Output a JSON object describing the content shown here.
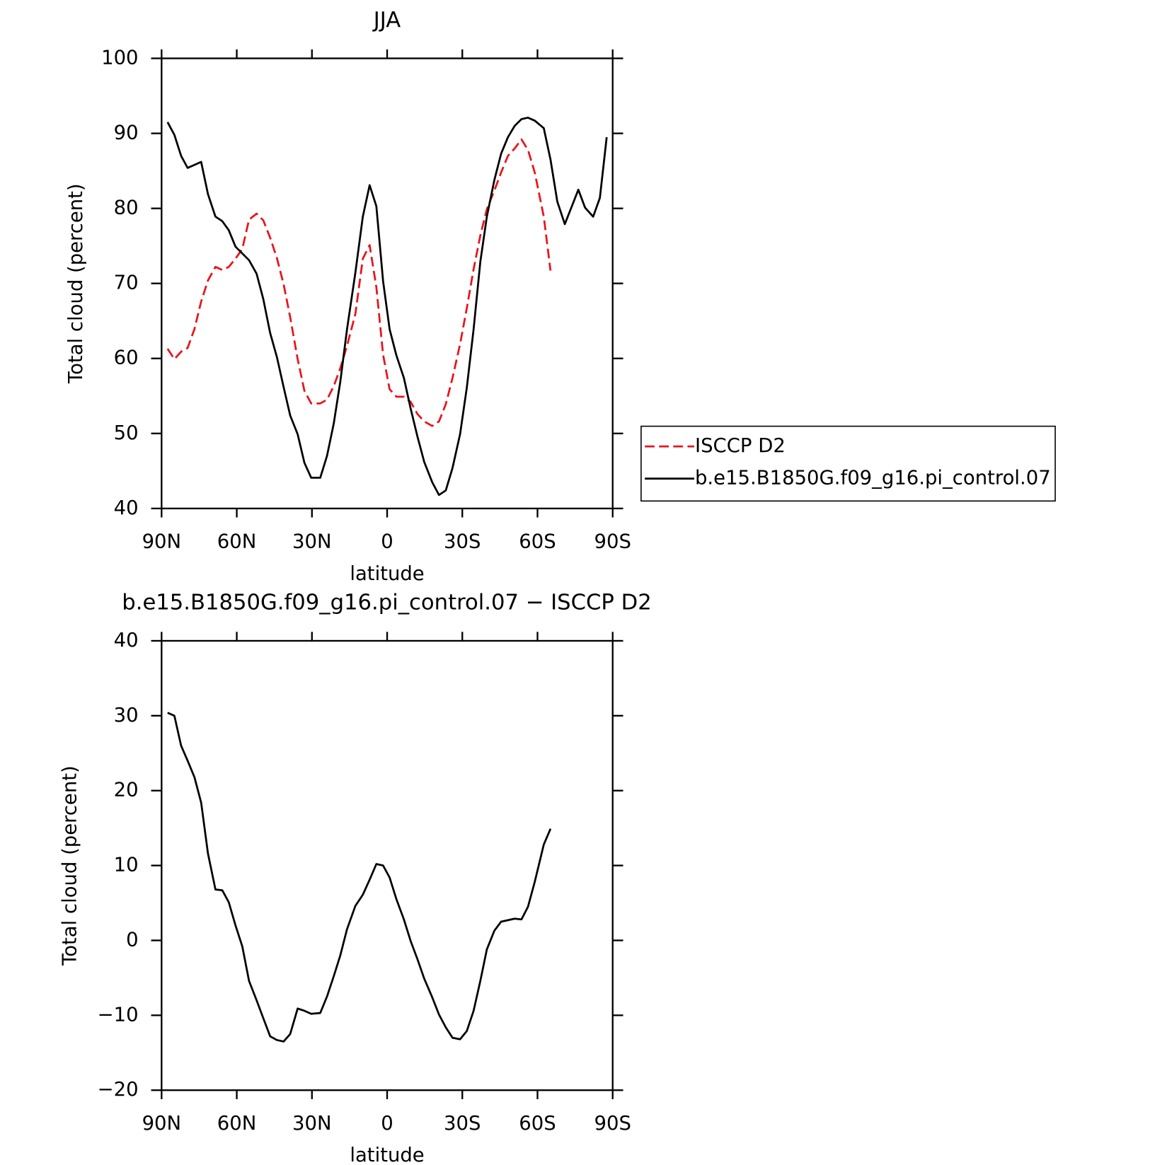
{
  "chart_data": [
    {
      "type": "line",
      "title": "JJA",
      "xlabel": "latitude",
      "ylabel": "Total cloud (percent)",
      "x": [
        87.6,
        84.9,
        82.2,
        79.6,
        76.9,
        74.2,
        71.5,
        68.5,
        65.8,
        63.2,
        60.5,
        57.8,
        55.1,
        52.1,
        49.4,
        46.7,
        44.0,
        41.3,
        38.7,
        35.7,
        33.0,
        30.3,
        26.7,
        24.0,
        21.3,
        18.7,
        16.0,
        12.7,
        9.7,
        7.0,
        4.3,
        1.6,
        -1.0,
        -3.7,
        -6.7,
        -9.4,
        -12.1,
        -14.8,
        -18.0,
        -20.7,
        -23.4,
        -26.1,
        -29.1,
        -31.8,
        -34.5,
        -37.2,
        -39.8,
        -42.8,
        -45.5,
        -48.2,
        -50.9,
        -53.6,
        -56.2,
        -58.9,
        -62.5,
        -65.2,
        -67.9,
        -70.9,
        -73.6,
        -76.3,
        -79.0,
        -82.2,
        -84.9,
        -87.6
      ],
      "series": [
        {
          "name": "ISCCP D2",
          "color": "#e8141c",
          "linestyle": "dashed",
          "values": [
            61.3,
            59.9,
            60.9,
            61.4,
            63.9,
            67.6,
            70.4,
            72.2,
            71.8,
            72.2,
            73.3,
            74.6,
            78.5,
            79.3,
            78.4,
            76.1,
            73.4,
            69.9,
            65.5,
            59.9,
            55.7,
            54.0,
            54.0,
            54.5,
            56.3,
            58.7,
            61.7,
            65.9,
            73.3,
            75.1,
            69.5,
            60.5,
            55.9,
            54.9,
            54.9,
            54.2,
            52.6,
            51.6,
            51.0,
            51.6,
            53.9,
            57.4,
            61.9,
            66.7,
            71.9,
            76.4,
            79.9,
            82.4,
            84.8,
            87.0,
            88.0,
            89.2,
            87.8,
            84.8,
            78.9,
            71.7,
            null,
            null,
            null,
            null,
            null,
            null,
            null,
            null
          ]
        },
        {
          "name": "b.e15.B1850G.f09_g16.pi_control.07",
          "color": "#000000",
          "linestyle": "solid",
          "values": [
            91.5,
            89.8,
            87.0,
            85.4,
            85.8,
            86.2,
            81.9,
            78.9,
            78.3,
            77.1,
            74.9,
            74.0,
            73.1,
            71.3,
            67.9,
            63.4,
            60.2,
            56.2,
            52.4,
            49.9,
            46.1,
            44.1,
            44.1,
            47.0,
            51.3,
            56.9,
            63.9,
            71.4,
            78.9,
            83.1,
            80.3,
            70.3,
            63.9,
            60.4,
            57.4,
            53.3,
            49.6,
            46.2,
            43.5,
            41.8,
            42.4,
            45.4,
            49.9,
            56.1,
            63.9,
            72.9,
            78.9,
            83.8,
            87.3,
            89.5,
            91.0,
            91.9,
            92.1,
            91.7,
            90.7,
            86.5,
            80.9,
            77.9,
            80.2,
            82.5,
            80.1,
            78.9,
            81.4,
            89.5
          ]
        }
      ],
      "xlim": [
        90,
        -90
      ],
      "xticks": [
        {
          "value": 90,
          "label": "90N"
        },
        {
          "value": 60,
          "label": "60N"
        },
        {
          "value": 30,
          "label": "30N"
        },
        0,
        {
          "value": -30,
          "label": "30S"
        },
        {
          "value": -60,
          "label": "60S"
        },
        {
          "value": -90,
          "label": "90S"
        }
      ],
      "ylim": [
        40,
        100
      ],
      "yticks": [
        40,
        50,
        60,
        70,
        80,
        90,
        100
      ],
      "legend": "right"
    },
    {
      "type": "line",
      "title": "b.e15.B1850G.f09_g16.pi_control.07 − ISCCP D2",
      "xlabel": "latitude",
      "ylabel": "Total cloud (percent)",
      "x": [
        87.6,
        84.9,
        82.2,
        79.6,
        76.9,
        74.2,
        71.5,
        68.5,
        65.8,
        63.2,
        60.5,
        57.8,
        55.1,
        52.1,
        49.4,
        46.7,
        44.0,
        41.3,
        38.7,
        35.7,
        33.0,
        30.3,
        26.7,
        24.0,
        21.3,
        18.7,
        16.0,
        12.7,
        9.7,
        7.0,
        4.3,
        1.6,
        -1.0,
        -3.7,
        -6.7,
        -9.4,
        -12.1,
        -14.8,
        -18.0,
        -20.7,
        -23.4,
        -26.1,
        -29.1,
        -31.8,
        -34.5,
        -37.2,
        -39.8,
        -42.8,
        -45.5,
        -48.2,
        -50.9,
        -53.6,
        -56.2,
        -58.9,
        -62.5,
        -65.2
      ],
      "values": [
        30.4,
        30.0,
        26.0,
        24.0,
        21.8,
        18.4,
        11.6,
        6.8,
        6.7,
        5.1,
        2.0,
        -0.8,
        -5.4,
        -8.0,
        -10.4,
        -12.8,
        -13.3,
        -13.5,
        -12.5,
        -9.1,
        -9.4,
        -9.8,
        -9.7,
        -7.5,
        -4.8,
        -2.0,
        1.5,
        4.6,
        6.1,
        8.1,
        10.2,
        10.0,
        8.4,
        5.5,
        2.8,
        -0.1,
        -2.5,
        -5.1,
        -7.6,
        -9.9,
        -11.6,
        -13.0,
        -13.2,
        -12.1,
        -9.4,
        -5.4,
        -1.2,
        1.3,
        2.5,
        2.7,
        2.9,
        2.8,
        4.5,
        7.8,
        12.8,
        14.9
      ],
      "color": "#000000",
      "linestyle": "solid",
      "xlim": [
        90,
        -90
      ],
      "xticks": [
        {
          "value": 90,
          "label": "90N"
        },
        {
          "value": 60,
          "label": "60N"
        },
        {
          "value": 30,
          "label": "30N"
        },
        0,
        {
          "value": -30,
          "label": "30S"
        },
        {
          "value": -60,
          "label": "60S"
        },
        {
          "value": -90,
          "label": "90S"
        }
      ],
      "ylim": [
        -20,
        40
      ],
      "yticks": [
        {
          "value": -20,
          "label": "−20"
        },
        {
          "value": -10,
          "label": "−10"
        },
        0,
        10,
        20,
        30,
        40
      ]
    }
  ]
}
